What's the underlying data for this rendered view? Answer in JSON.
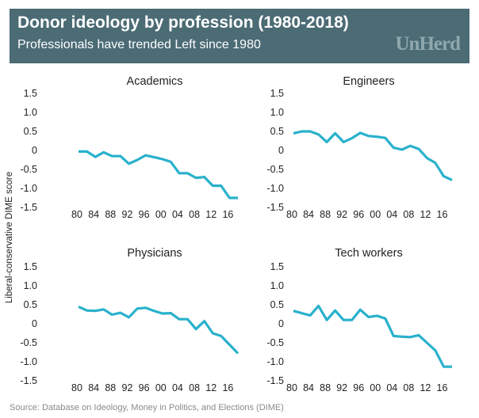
{
  "header": {
    "title": "Donor ideology by profession (1980-2018)",
    "subtitle": "Professionals have trended Left since 1980",
    "logo": "UnHerd"
  },
  "source": "Source: Database on Ideology, Money in Politics, and Elections (DIME)",
  "colors": {
    "line": "#29b1cc",
    "header_bg": "#4b6b75"
  },
  "chart_data": {
    "type": "line",
    "ylabel": "Liberal-conservative DIME score",
    "ylim": [
      -1.5,
      1.5
    ],
    "yticks": [
      "1.5",
      "1.0",
      "0.5",
      "0",
      "-0.5",
      "-1.0",
      "-1.5"
    ],
    "xticks": [
      "80",
      "84",
      "88",
      "92",
      "96",
      "00",
      "04",
      "08",
      "12",
      "16"
    ],
    "x": [
      1980,
      1982,
      1984,
      1986,
      1988,
      1990,
      1992,
      1994,
      1996,
      1998,
      2000,
      2002,
      2004,
      2006,
      2008,
      2010,
      2012,
      2014,
      2016,
      2018
    ],
    "panels": [
      {
        "title": "Academics",
        "values": [
          -0.03,
          -0.03,
          -0.17,
          -0.05,
          -0.15,
          -0.15,
          -0.35,
          -0.25,
          -0.13,
          -0.18,
          -0.23,
          -0.3,
          -0.6,
          -0.6,
          -0.72,
          -0.7,
          -0.93,
          -0.93,
          -1.25,
          -1.25
        ]
      },
      {
        "title": "Engineers",
        "values": [
          0.45,
          0.5,
          0.5,
          0.42,
          0.22,
          0.45,
          0.22,
          0.32,
          0.46,
          0.38,
          0.36,
          0.33,
          0.07,
          0.02,
          0.12,
          0.04,
          -0.2,
          -0.33,
          -0.68,
          -0.78
        ]
      },
      {
        "title": "Physicians",
        "values": [
          0.45,
          0.35,
          0.34,
          0.38,
          0.24,
          0.29,
          0.17,
          0.4,
          0.42,
          0.34,
          0.27,
          0.28,
          0.12,
          0.12,
          -0.14,
          0.07,
          -0.25,
          -0.32,
          -0.55,
          -0.78
        ]
      },
      {
        "title": "Tech workers",
        "values": [
          0.34,
          0.28,
          0.22,
          0.47,
          0.1,
          0.35,
          0.1,
          0.1,
          0.37,
          0.18,
          0.21,
          0.14,
          -0.32,
          -0.34,
          -0.35,
          -0.3,
          -0.5,
          -0.7,
          -1.13,
          -1.13
        ]
      }
    ]
  }
}
